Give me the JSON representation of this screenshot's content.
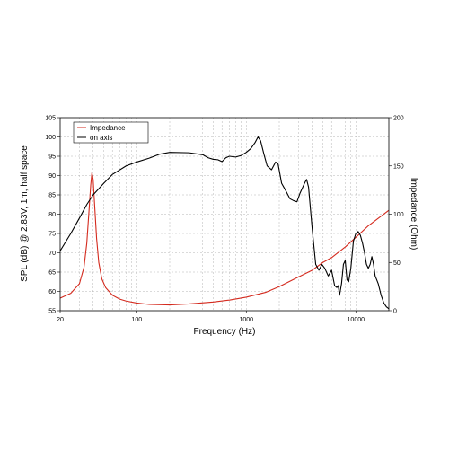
{
  "chart_data": {
    "type": "line",
    "xlabel": "Frequency (Hz)",
    "ylabel": "SPL (dB) @ 2.83V, 1m, half space",
    "y2label": "Impedance (Ohm)",
    "x_scale": "log",
    "xlim": [
      20,
      20000
    ],
    "ylim": [
      55,
      105
    ],
    "y2lim": [
      0,
      200
    ],
    "grid": true,
    "legend_position": "top-left",
    "x_ticks": [
      {
        "value": 20,
        "label": "20"
      },
      {
        "value": 100,
        "label": "100"
      },
      {
        "value": 1000,
        "label": "1000"
      },
      {
        "value": 10000,
        "label": "10000"
      }
    ],
    "y_ticks": [
      {
        "value": 55,
        "label": "55"
      },
      {
        "value": 60,
        "label": "60"
      },
      {
        "value": 65,
        "label": "65"
      },
      {
        "value": 70,
        "label": "70"
      },
      {
        "value": 75,
        "label": "75"
      },
      {
        "value": 80,
        "label": "80"
      },
      {
        "value": 85,
        "label": "85"
      },
      {
        "value": 90,
        "label": "90"
      },
      {
        "value": 95,
        "label": "95"
      },
      {
        "value": 100,
        "label": "100"
      },
      {
        "value": 105,
        "label": "105"
      }
    ],
    "y2_ticks": [
      {
        "value": 0,
        "label": "0"
      },
      {
        "value": 50,
        "label": "50"
      },
      {
        "value": 100,
        "label": "100"
      },
      {
        "value": 150,
        "label": "150"
      },
      {
        "value": 200,
        "label": "200"
      }
    ],
    "series": [
      {
        "name": "Impedance",
        "axis": "right",
        "color": "#d42a1e",
        "points": [
          [
            20,
            13
          ],
          [
            25,
            18
          ],
          [
            30,
            28
          ],
          [
            33,
            45
          ],
          [
            35,
            70
          ],
          [
            37,
            110
          ],
          [
            38,
            130
          ],
          [
            39,
            143
          ],
          [
            40,
            136
          ],
          [
            41,
            115
          ],
          [
            43,
            75
          ],
          [
            45,
            50
          ],
          [
            48,
            33
          ],
          [
            52,
            24
          ],
          [
            60,
            16
          ],
          [
            70,
            12
          ],
          [
            80,
            10
          ],
          [
            100,
            8
          ],
          [
            130,
            6.5
          ],
          [
            200,
            6
          ],
          [
            300,
            7
          ],
          [
            500,
            9
          ],
          [
            700,
            11
          ],
          [
            1000,
            14
          ],
          [
            1500,
            19
          ],
          [
            2000,
            25
          ],
          [
            3000,
            35
          ],
          [
            4000,
            42
          ],
          [
            5000,
            50
          ],
          [
            6000,
            55
          ],
          [
            8000,
            66
          ],
          [
            10000,
            76
          ],
          [
            13000,
            88
          ],
          [
            17000,
            98
          ],
          [
            20000,
            104
          ]
        ]
      },
      {
        "name": "on axis",
        "axis": "left",
        "color": "#000000",
        "points": [
          [
            20,
            70.5
          ],
          [
            25,
            75
          ],
          [
            30,
            79
          ],
          [
            35,
            82.5
          ],
          [
            40,
            85
          ],
          [
            50,
            88
          ],
          [
            60,
            90.3
          ],
          [
            80,
            92.5
          ],
          [
            100,
            93.5
          ],
          [
            130,
            94.5
          ],
          [
            160,
            95.5
          ],
          [
            200,
            96
          ],
          [
            300,
            95.9
          ],
          [
            400,
            95.4
          ],
          [
            450,
            94.6
          ],
          [
            500,
            94.2
          ],
          [
            550,
            94.1
          ],
          [
            600,
            93.6
          ],
          [
            650,
            94.6
          ],
          [
            700,
            95
          ],
          [
            800,
            94.8
          ],
          [
            900,
            95.2
          ],
          [
            1000,
            96
          ],
          [
            1100,
            97
          ],
          [
            1200,
            98.5
          ],
          [
            1280,
            100
          ],
          [
            1350,
            99
          ],
          [
            1450,
            95.5
          ],
          [
            1550,
            92.5
          ],
          [
            1700,
            91.5
          ],
          [
            1850,
            93.5
          ],
          [
            1950,
            93
          ],
          [
            2100,
            88
          ],
          [
            2300,
            86
          ],
          [
            2500,
            84
          ],
          [
            2700,
            83.5
          ],
          [
            2900,
            83.2
          ],
          [
            3100,
            85.5
          ],
          [
            3400,
            88
          ],
          [
            3550,
            89
          ],
          [
            3700,
            87
          ],
          [
            4000,
            76
          ],
          [
            4300,
            67
          ],
          [
            4600,
            65.5
          ],
          [
            4900,
            67
          ],
          [
            5200,
            66
          ],
          [
            5600,
            64
          ],
          [
            6000,
            65.5
          ],
          [
            6400,
            61.5
          ],
          [
            6700,
            61
          ],
          [
            6900,
            61.5
          ],
          [
            7100,
            59
          ],
          [
            7400,
            62
          ],
          [
            7700,
            67
          ],
          [
            8000,
            68
          ],
          [
            8300,
            63
          ],
          [
            8600,
            62.5
          ],
          [
            9000,
            66
          ],
          [
            9500,
            73
          ],
          [
            10000,
            75
          ],
          [
            10500,
            75.5
          ],
          [
            11000,
            74.5
          ],
          [
            11500,
            72.5
          ],
          [
            12000,
            70
          ],
          [
            12500,
            67
          ],
          [
            13000,
            66
          ],
          [
            13500,
            67
          ],
          [
            14000,
            69
          ],
          [
            14500,
            67
          ],
          [
            15000,
            64
          ],
          [
            15500,
            63
          ],
          [
            16000,
            62
          ],
          [
            17000,
            59
          ],
          [
            18000,
            57
          ],
          [
            19000,
            56
          ],
          [
            20000,
            55.5
          ]
        ]
      }
    ]
  }
}
